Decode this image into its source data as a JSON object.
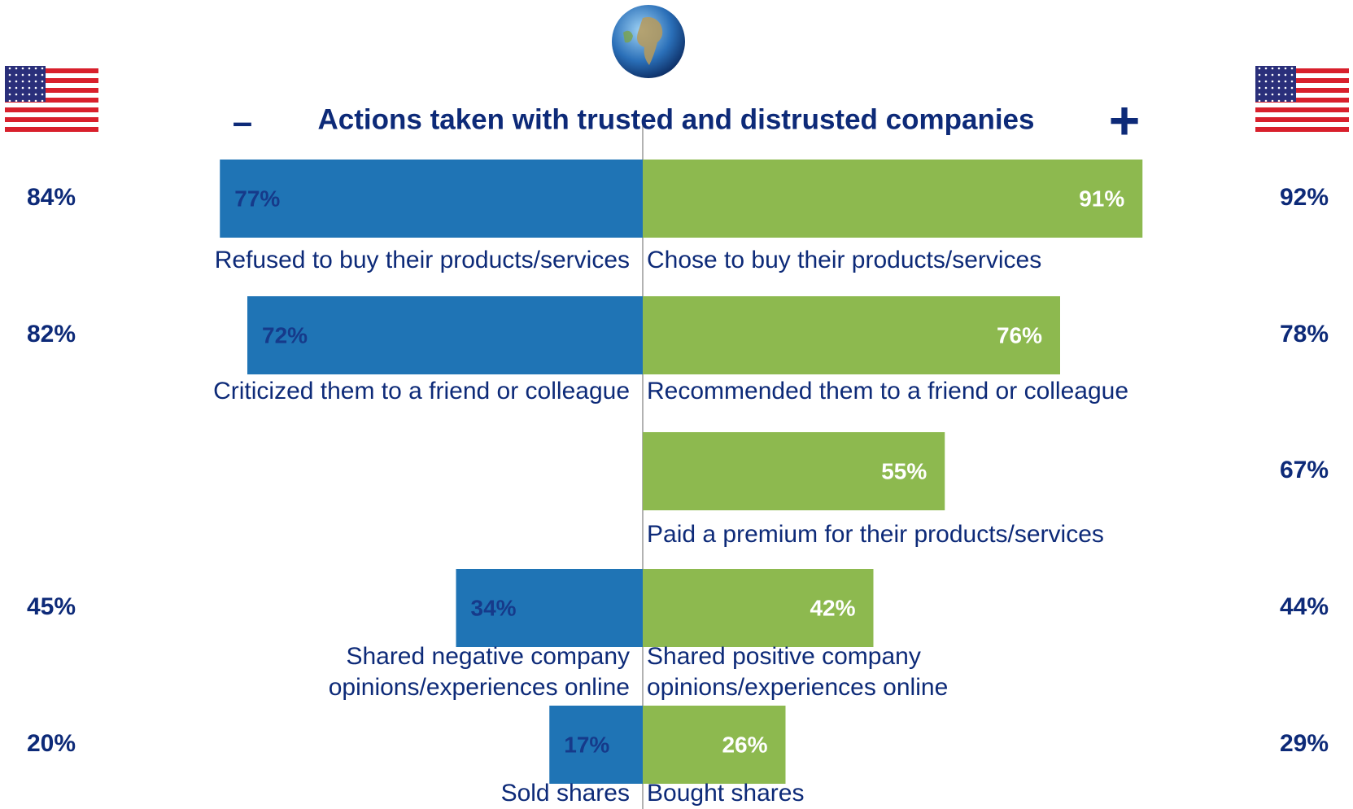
{
  "chart_data": {
    "type": "diverging_bar",
    "title": "Actions taken with trusted and distrusted companies",
    "left_sign": "–",
    "right_sign": "+",
    "left": {
      "color": "#1f74b5",
      "values": [
        77,
        72,
        null,
        34,
        17
      ],
      "value_labels": [
        "77%",
        "72%",
        null,
        "34%",
        "17%"
      ],
      "labels": [
        [
          "Refused to buy their products/services"
        ],
        [
          "Criticized them to a friend or colleague"
        ],
        null,
        [
          "Shared negative company",
          "opinions/experiences online"
        ],
        [
          "Sold shares"
        ]
      ],
      "us_values": [
        84,
        82,
        null,
        45,
        20
      ],
      "us_value_labels": [
        "84%",
        "82%",
        null,
        "45%",
        "20%"
      ]
    },
    "right": {
      "color": "#8db94f",
      "values": [
        91,
        76,
        55,
        42,
        26
      ],
      "value_labels": [
        "91%",
        "76%",
        "55%",
        "42%",
        "26%"
      ],
      "labels": [
        [
          "Chose to buy their products/services"
        ],
        [
          "Recommended them to a friend or colleague"
        ],
        [
          "Paid a premium for their products/services"
        ],
        [
          "Shared positive company",
          "opinions/experiences online"
        ],
        [
          "Bought shares"
        ]
      ],
      "us_values": [
        92,
        78,
        67,
        44,
        29
      ],
      "us_value_labels": [
        "92%",
        "78%",
        "67%",
        "44%",
        "29%"
      ]
    }
  }
}
